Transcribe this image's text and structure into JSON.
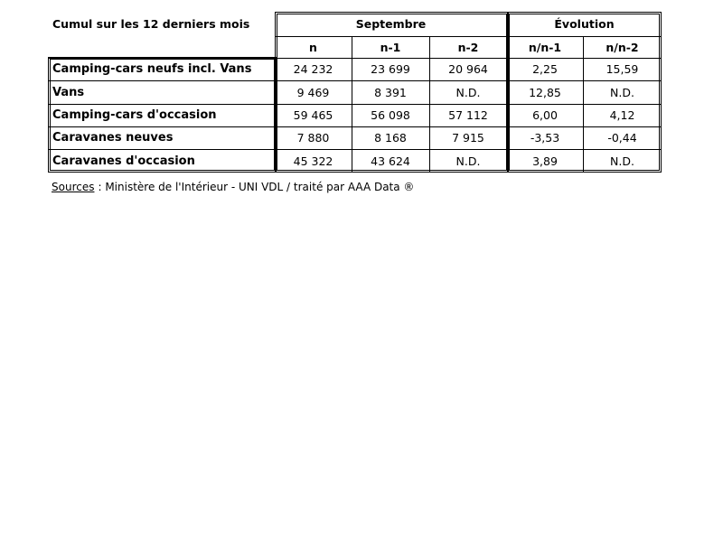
{
  "table": {
    "corner": "Cumul sur les 12 derniers mois",
    "groups": [
      "Septembre",
      "Évolution"
    ],
    "columns": [
      "n",
      "n-1",
      "n-2",
      "n/n-1",
      "n/n-2"
    ],
    "rows": [
      [
        "Camping-cars neufs incl. Vans",
        "24 232",
        "23 699",
        "20 964",
        "2,25",
        "15,59"
      ],
      [
        "Vans",
        "9 469",
        "8 391",
        "N.D.",
        "12,85",
        "N.D."
      ],
      [
        "Camping-cars d'occasion",
        "59 465",
        "56 098",
        "57 112",
        "6,00",
        "4,12"
      ],
      [
        "Caravanes neuves",
        "7 880",
        "8 168",
        "7 915",
        "-3,53",
        "-0,44"
      ],
      [
        "Caravanes d'occasion",
        "45 322",
        "43 624",
        "N.D.",
        "3,89",
        "N.D."
      ]
    ]
  },
  "footer": {
    "source_label": "Sources",
    "source_text": ": Ministère de l'Intérieur - UNI VDL / traité par AAA Data ®"
  }
}
